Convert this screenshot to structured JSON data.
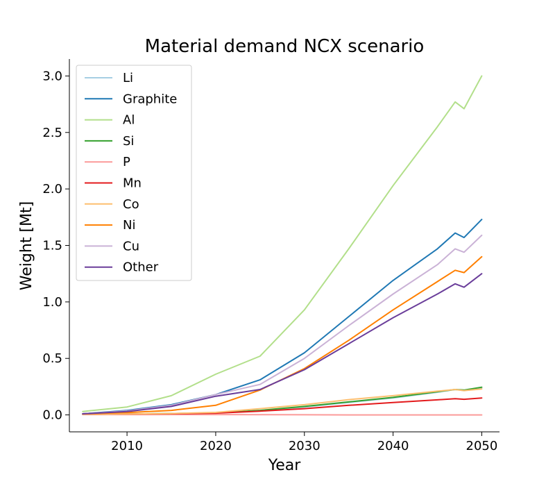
{
  "chart_data": {
    "type": "line",
    "title": "Material demand NCX scenario",
    "xlabel": "Year",
    "ylabel": "Weight [Mt]",
    "xlim": [
      2003.5,
      2052
    ],
    "ylim": [
      -0.15,
      3.15
    ],
    "xticks": [
      2010,
      2020,
      2030,
      2040,
      2050
    ],
    "yticks": [
      0.0,
      0.5,
      1.0,
      1.5,
      2.0,
      2.5,
      3.0
    ],
    "ytick_labels": [
      "0.0",
      "0.5",
      "1.0",
      "1.5",
      "2.0",
      "2.5",
      "3.0"
    ],
    "grid": false,
    "legend_position": "upper-left",
    "x": [
      2005,
      2010,
      2015,
      2020,
      2025,
      2030,
      2035,
      2040,
      2045,
      2047,
      2048,
      2050
    ],
    "series": [
      {
        "name": "Li",
        "color": "#a6cee3",
        "values": [
          0.005,
          0.008,
          0.012,
          0.018,
          0.038,
          0.07,
          0.11,
          0.15,
          0.2,
          0.225,
          0.215,
          0.24
        ]
      },
      {
        "name": "Graphite",
        "color": "#1f78b4",
        "values": [
          0.01,
          0.04,
          0.09,
          0.18,
          0.31,
          0.55,
          0.87,
          1.19,
          1.47,
          1.61,
          1.57,
          1.73
        ]
      },
      {
        "name": "Al",
        "color": "#b2df8a",
        "values": [
          0.03,
          0.07,
          0.17,
          0.36,
          0.52,
          0.93,
          1.47,
          2.03,
          2.55,
          2.77,
          2.71,
          3.0
        ]
      },
      {
        "name": "Si",
        "color": "#33a02c",
        "values": [
          0.005,
          0.008,
          0.012,
          0.018,
          0.04,
          0.075,
          0.115,
          0.155,
          0.205,
          0.225,
          0.22,
          0.245
        ]
      },
      {
        "name": "P",
        "color": "#fb9a99",
        "values": [
          0.003,
          0.003,
          0.003,
          0.003,
          0.002,
          0.001,
          0.0,
          0.0,
          0.0,
          0.0,
          0.0,
          0.0
        ]
      },
      {
        "name": "Mn",
        "color": "#e31a1c",
        "values": [
          0.005,
          0.008,
          0.01,
          0.015,
          0.033,
          0.055,
          0.085,
          0.11,
          0.133,
          0.143,
          0.138,
          0.15
        ]
      },
      {
        "name": "Co",
        "color": "#fdbf6f",
        "values": [
          0.005,
          0.008,
          0.012,
          0.022,
          0.055,
          0.09,
          0.135,
          0.17,
          0.21,
          0.225,
          0.215,
          0.23
        ]
      },
      {
        "name": "Ni",
        "color": "#ff7f00",
        "values": [
          0.01,
          0.02,
          0.04,
          0.085,
          0.22,
          0.41,
          0.66,
          0.93,
          1.18,
          1.28,
          1.26,
          1.4
        ]
      },
      {
        "name": "Cu",
        "color": "#cab2d6",
        "values": [
          0.01,
          0.035,
          0.085,
          0.18,
          0.27,
          0.5,
          0.79,
          1.07,
          1.33,
          1.47,
          1.44,
          1.59
        ]
      },
      {
        "name": "Other",
        "color": "#6a3d9a",
        "values": [
          0.01,
          0.03,
          0.075,
          0.165,
          0.225,
          0.4,
          0.63,
          0.86,
          1.07,
          1.16,
          1.13,
          1.25
        ]
      }
    ]
  }
}
